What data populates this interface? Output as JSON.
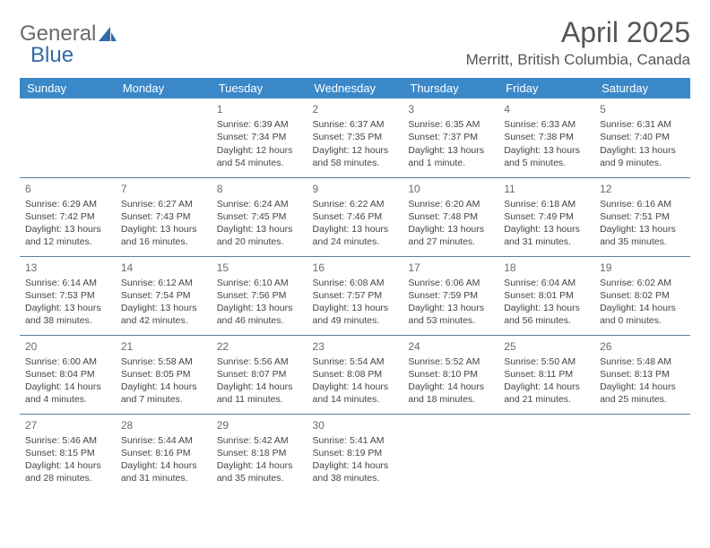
{
  "logo": {
    "word1": "General",
    "word2": "Blue"
  },
  "title": "April 2025",
  "subtitle": "Merritt, British Columbia, Canada",
  "colors": {
    "header_bg": "#3b88c9",
    "header_fg": "#ffffff",
    "row_border": "#5a7fa0",
    "text": "#444444",
    "title_color": "#555555",
    "logo_gray": "#6b6b6b",
    "logo_blue": "#2f6aa8"
  },
  "weekdays": [
    "Sunday",
    "Monday",
    "Tuesday",
    "Wednesday",
    "Thursday",
    "Friday",
    "Saturday"
  ],
  "weeks": [
    [
      null,
      null,
      {
        "n": "1",
        "sr": "Sunrise: 6:39 AM",
        "ss": "Sunset: 7:34 PM",
        "dl": "Daylight: 12 hours and 54 minutes."
      },
      {
        "n": "2",
        "sr": "Sunrise: 6:37 AM",
        "ss": "Sunset: 7:35 PM",
        "dl": "Daylight: 12 hours and 58 minutes."
      },
      {
        "n": "3",
        "sr": "Sunrise: 6:35 AM",
        "ss": "Sunset: 7:37 PM",
        "dl": "Daylight: 13 hours and 1 minute."
      },
      {
        "n": "4",
        "sr": "Sunrise: 6:33 AM",
        "ss": "Sunset: 7:38 PM",
        "dl": "Daylight: 13 hours and 5 minutes."
      },
      {
        "n": "5",
        "sr": "Sunrise: 6:31 AM",
        "ss": "Sunset: 7:40 PM",
        "dl": "Daylight: 13 hours and 9 minutes."
      }
    ],
    [
      {
        "n": "6",
        "sr": "Sunrise: 6:29 AM",
        "ss": "Sunset: 7:42 PM",
        "dl": "Daylight: 13 hours and 12 minutes."
      },
      {
        "n": "7",
        "sr": "Sunrise: 6:27 AM",
        "ss": "Sunset: 7:43 PM",
        "dl": "Daylight: 13 hours and 16 minutes."
      },
      {
        "n": "8",
        "sr": "Sunrise: 6:24 AM",
        "ss": "Sunset: 7:45 PM",
        "dl": "Daylight: 13 hours and 20 minutes."
      },
      {
        "n": "9",
        "sr": "Sunrise: 6:22 AM",
        "ss": "Sunset: 7:46 PM",
        "dl": "Daylight: 13 hours and 24 minutes."
      },
      {
        "n": "10",
        "sr": "Sunrise: 6:20 AM",
        "ss": "Sunset: 7:48 PM",
        "dl": "Daylight: 13 hours and 27 minutes."
      },
      {
        "n": "11",
        "sr": "Sunrise: 6:18 AM",
        "ss": "Sunset: 7:49 PM",
        "dl": "Daylight: 13 hours and 31 minutes."
      },
      {
        "n": "12",
        "sr": "Sunrise: 6:16 AM",
        "ss": "Sunset: 7:51 PM",
        "dl": "Daylight: 13 hours and 35 minutes."
      }
    ],
    [
      {
        "n": "13",
        "sr": "Sunrise: 6:14 AM",
        "ss": "Sunset: 7:53 PM",
        "dl": "Daylight: 13 hours and 38 minutes."
      },
      {
        "n": "14",
        "sr": "Sunrise: 6:12 AM",
        "ss": "Sunset: 7:54 PM",
        "dl": "Daylight: 13 hours and 42 minutes."
      },
      {
        "n": "15",
        "sr": "Sunrise: 6:10 AM",
        "ss": "Sunset: 7:56 PM",
        "dl": "Daylight: 13 hours and 46 minutes."
      },
      {
        "n": "16",
        "sr": "Sunrise: 6:08 AM",
        "ss": "Sunset: 7:57 PM",
        "dl": "Daylight: 13 hours and 49 minutes."
      },
      {
        "n": "17",
        "sr": "Sunrise: 6:06 AM",
        "ss": "Sunset: 7:59 PM",
        "dl": "Daylight: 13 hours and 53 minutes."
      },
      {
        "n": "18",
        "sr": "Sunrise: 6:04 AM",
        "ss": "Sunset: 8:01 PM",
        "dl": "Daylight: 13 hours and 56 minutes."
      },
      {
        "n": "19",
        "sr": "Sunrise: 6:02 AM",
        "ss": "Sunset: 8:02 PM",
        "dl": "Daylight: 14 hours and 0 minutes."
      }
    ],
    [
      {
        "n": "20",
        "sr": "Sunrise: 6:00 AM",
        "ss": "Sunset: 8:04 PM",
        "dl": "Daylight: 14 hours and 4 minutes."
      },
      {
        "n": "21",
        "sr": "Sunrise: 5:58 AM",
        "ss": "Sunset: 8:05 PM",
        "dl": "Daylight: 14 hours and 7 minutes."
      },
      {
        "n": "22",
        "sr": "Sunrise: 5:56 AM",
        "ss": "Sunset: 8:07 PM",
        "dl": "Daylight: 14 hours and 11 minutes."
      },
      {
        "n": "23",
        "sr": "Sunrise: 5:54 AM",
        "ss": "Sunset: 8:08 PM",
        "dl": "Daylight: 14 hours and 14 minutes."
      },
      {
        "n": "24",
        "sr": "Sunrise: 5:52 AM",
        "ss": "Sunset: 8:10 PM",
        "dl": "Daylight: 14 hours and 18 minutes."
      },
      {
        "n": "25",
        "sr": "Sunrise: 5:50 AM",
        "ss": "Sunset: 8:11 PM",
        "dl": "Daylight: 14 hours and 21 minutes."
      },
      {
        "n": "26",
        "sr": "Sunrise: 5:48 AM",
        "ss": "Sunset: 8:13 PM",
        "dl": "Daylight: 14 hours and 25 minutes."
      }
    ],
    [
      {
        "n": "27",
        "sr": "Sunrise: 5:46 AM",
        "ss": "Sunset: 8:15 PM",
        "dl": "Daylight: 14 hours and 28 minutes."
      },
      {
        "n": "28",
        "sr": "Sunrise: 5:44 AM",
        "ss": "Sunset: 8:16 PM",
        "dl": "Daylight: 14 hours and 31 minutes."
      },
      {
        "n": "29",
        "sr": "Sunrise: 5:42 AM",
        "ss": "Sunset: 8:18 PM",
        "dl": "Daylight: 14 hours and 35 minutes."
      },
      {
        "n": "30",
        "sr": "Sunrise: 5:41 AM",
        "ss": "Sunset: 8:19 PM",
        "dl": "Daylight: 14 hours and 38 minutes."
      },
      null,
      null,
      null
    ]
  ]
}
